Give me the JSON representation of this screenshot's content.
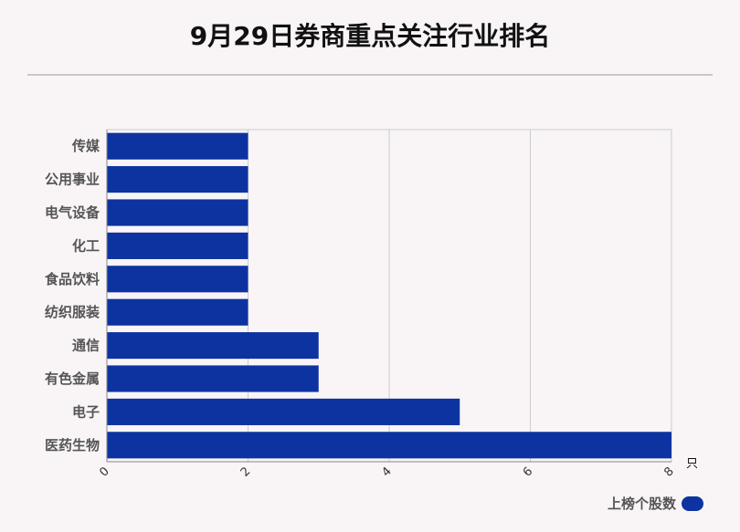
{
  "colors": {
    "background": "#f9f5f7",
    "bar": "#0d33a0",
    "grid": "#cccccc",
    "axis": "#888888"
  },
  "chart_data": {
    "type": "bar",
    "orientation": "horizontal",
    "title": "9月29日券商重点关注行业排名",
    "categories": [
      "传媒",
      "公用事业",
      "电气设备",
      "化工",
      "食品饮料",
      "纺织服装",
      "通信",
      "有色金属",
      "电子",
      "医药生物"
    ],
    "series": [
      {
        "name": "上榜个股数",
        "values": [
          2,
          2,
          2,
          2,
          2,
          2,
          3,
          3,
          5,
          8
        ]
      }
    ],
    "xlim": [
      0,
      8
    ],
    "xticks": [
      "0",
      "2",
      "4",
      "6",
      "8"
    ],
    "x_unit": "只",
    "grid": true,
    "legend_position": "bottom-right"
  }
}
